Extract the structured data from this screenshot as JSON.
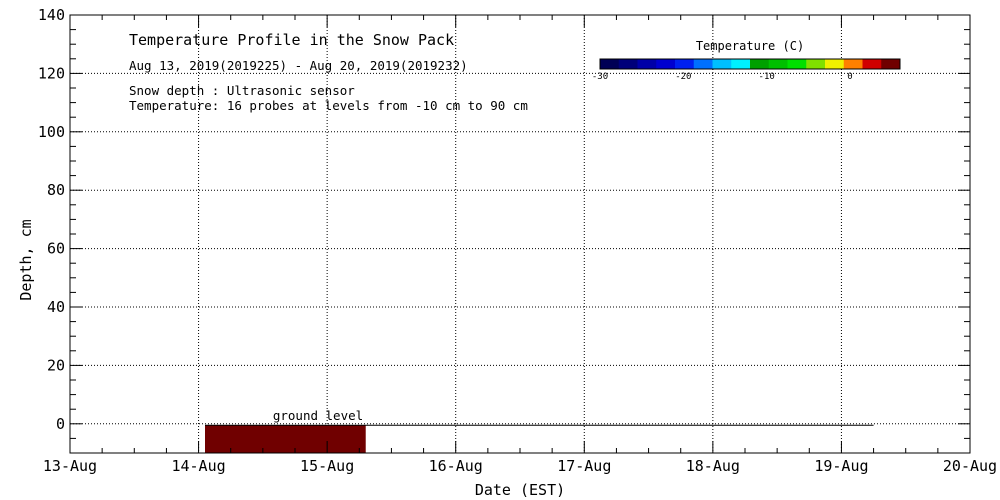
{
  "chart_data": {
    "type": "heatmap",
    "title": "Temperature Profile in the Snow Pack",
    "subtitle": "Aug 13, 2019(2019225) - Aug 20, 2019(2019232)",
    "notes": [
      "Snow depth : Ultrasonic sensor",
      "Temperature: 16 probes at levels from -10 cm to 90 cm"
    ],
    "xlabel": "Date (EST)",
    "ylabel": "Depth, cm",
    "x_ticks": [
      "13-Aug",
      "14-Aug",
      "15-Aug",
      "16-Aug",
      "17-Aug",
      "18-Aug",
      "19-Aug",
      "20-Aug"
    ],
    "xlim": [
      0,
      7
    ],
    "ylim": [
      -10,
      140
    ],
    "y_ticks": [
      0,
      20,
      40,
      60,
      80,
      100,
      120,
      140
    ],
    "grid": true,
    "colorbar": {
      "title": "Temperature (C)",
      "range": [
        -30,
        6
      ],
      "tick_values": [
        -30,
        -20,
        -10,
        0
      ],
      "tick_labels": [
        "-30",
        "-20",
        "-10",
        "0"
      ],
      "colors": [
        "#000055",
        "#00007a",
        "#0000a8",
        "#0000d0",
        "#0020f0",
        "#0070ff",
        "#00c0ff",
        "#00f0ff",
        "#00a000",
        "#00c000",
        "#00e000",
        "#80e000",
        "#f0f000",
        "#ff8000",
        "#d00000",
        "#700000"
      ]
    },
    "snow_depth_series": {
      "name": "ground level",
      "x": [
        1.05,
        6.25
      ],
      "y": [
        -0.5,
        -0.5
      ]
    },
    "cells": [
      {
        "x0": 1.05,
        "x1": 2.3,
        "y0": -10,
        "y1": -0.5,
        "value": 5.5,
        "color": "#700000"
      }
    ]
  }
}
